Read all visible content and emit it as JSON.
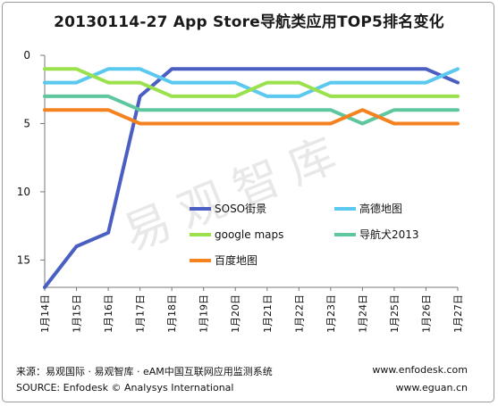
{
  "chart_data": {
    "type": "line",
    "title": "20130114-27 App Store导航类应用TOP5排名变化",
    "categories": [
      "1月14日",
      "1月15日",
      "1月16日",
      "1月17日",
      "1月18日",
      "1月19日",
      "1月20日",
      "1月21日",
      "1月22日",
      "1月23日",
      "1月24日",
      "1月25日",
      "1月26日",
      "1月27日"
    ],
    "y_axis": {
      "reversed": true,
      "range": [
        0,
        17
      ],
      "ticks": [
        0,
        5,
        10,
        15
      ]
    },
    "grid": false,
    "legend_position": "inside-right",
    "series": [
      {
        "name": "SOSO街景",
        "color": "#4a5fc1",
        "values": [
          17,
          14,
          13,
          3,
          1,
          1,
          1,
          1,
          1,
          1,
          1,
          1,
          1,
          2
        ]
      },
      {
        "name": "高德地图",
        "color": "#5bc8f0",
        "values": [
          2,
          2,
          1,
          1,
          2,
          2,
          2,
          3,
          3,
          2,
          2,
          2,
          2,
          1
        ]
      },
      {
        "name": "google maps",
        "color": "#9be04d",
        "values": [
          1,
          1,
          2,
          2,
          3,
          3,
          3,
          2,
          2,
          3,
          3,
          3,
          3,
          3
        ]
      },
      {
        "name": "导航犬2013",
        "color": "#5ec79e",
        "values": [
          3,
          3,
          3,
          4,
          4,
          4,
          4,
          4,
          4,
          4,
          5,
          4,
          4,
          4
        ]
      },
      {
        "name": "百度地图",
        "color": "#f58220",
        "values": [
          4,
          4,
          4,
          5,
          5,
          5,
          5,
          5,
          5,
          5,
          4,
          5,
          5,
          5
        ]
      }
    ]
  },
  "watermark": "易观智库",
  "footer": {
    "source_cn": "来源：易观国际 · 易观智库 · eAM中国互联网应用监测系统",
    "source_en": "SOURCE: Enfodesk © Analysys International",
    "url1": "www.enfodesk.com",
    "url2": "www.eguan.cn"
  }
}
